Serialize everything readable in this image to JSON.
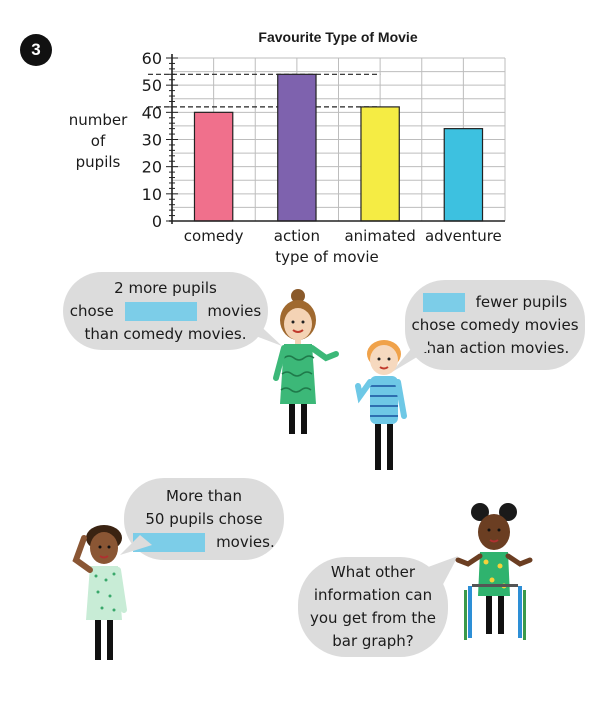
{
  "question_number": "3",
  "chart_data": {
    "type": "bar",
    "title": "Favourite Type of Movie",
    "xlabel": "type of movie",
    "ylabel": [
      "number",
      "of",
      "pupils"
    ],
    "categories": [
      "comedy",
      "action",
      "animated",
      "adventure"
    ],
    "values": [
      40,
      54,
      42,
      34
    ],
    "ylim": [
      0,
      60
    ],
    "yticks": [
      0,
      10,
      20,
      30,
      40,
      50,
      60
    ],
    "grid": true,
    "reference_lines": [
      54,
      42
    ],
    "colors": [
      "#f0708c",
      "#7e62ae",
      "#f5ec44",
      "#3dc1e0"
    ]
  },
  "bubbles": {
    "b1": {
      "line1": "2 more pupils",
      "line2_pre": "chose",
      "line2_post": "movies",
      "line3": "than comedy movies."
    },
    "b2": {
      "line1_post": "fewer pupils",
      "line2": "chose comedy movies",
      "line3": "than action movies."
    },
    "b3": {
      "line1": "More than",
      "line2": "50 pupils chose",
      "line3_post": "movies."
    },
    "b4": {
      "line1": "What other",
      "line2": "information can",
      "line3": "you get from the",
      "line4": "bar graph?"
    }
  },
  "colors": {
    "blank": "#7ccde8",
    "bubble": "#dcdcdc"
  }
}
